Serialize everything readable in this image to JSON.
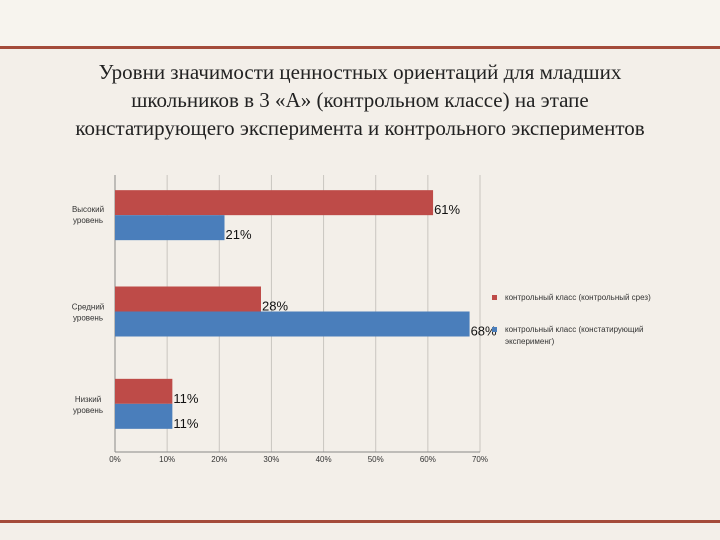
{
  "slide": {
    "title_lines": [
      "Уровни значимости ценностных ориентаций для младших",
      "школьников в 3 «А» (контрольном классе) на этапе",
      "констатирующего эксперимента и контрольного  экспериментов"
    ]
  },
  "chart_data": {
    "type": "bar",
    "orientation": "horizontal",
    "categories": [
      [
        "Высокий",
        "уровень"
      ],
      [
        "Средний",
        "уровень"
      ],
      [
        "Низкий",
        "уровень"
      ]
    ],
    "series": [
      {
        "name": "контрольный класс (контрольный срез)",
        "color": "#be4b48",
        "values": [
          61,
          28,
          11
        ],
        "labels": [
          "61%",
          "28%",
          "11%"
        ]
      },
      {
        "name": "контрольный класс (констатирующий эксперименг)",
        "color": "#4a7ebb",
        "values": [
          21,
          68,
          11
        ],
        "labels": [
          "21%",
          "68%",
          "11%"
        ]
      }
    ],
    "xlim": [
      0,
      70
    ],
    "xticks": [
      "0%",
      "10%",
      "20%",
      "30%",
      "40%",
      "50%",
      "60%",
      "70%"
    ],
    "grid": true,
    "legend_position": "right"
  },
  "colors": {
    "frame": "#a44b3a",
    "background": "#f3efe9"
  }
}
